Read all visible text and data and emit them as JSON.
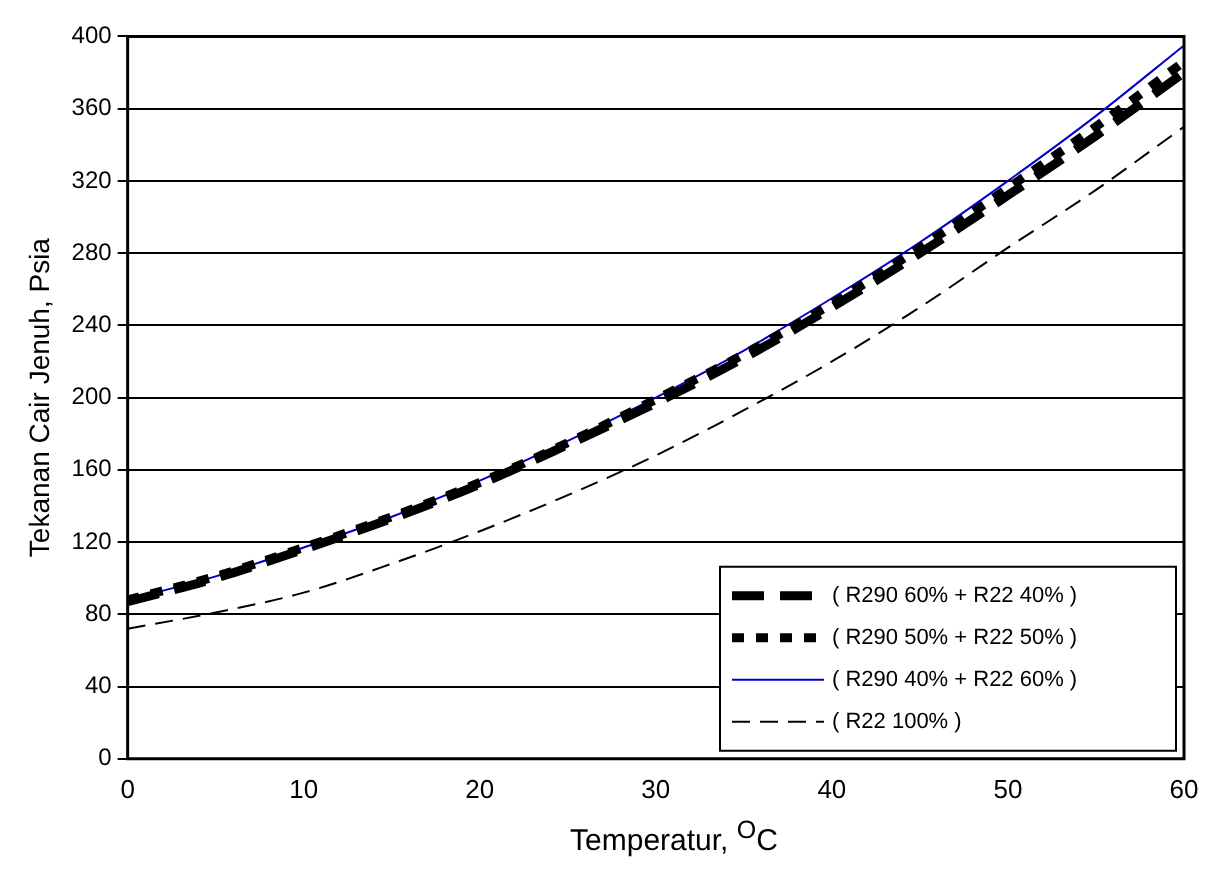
{
  "chart_data": {
    "type": "line",
    "xlabel": "Temperatur, $^{O}$C",
    "ylabel": "Tekanan Cair Jenuh, Psia",
    "x": [
      0,
      5,
      10,
      15,
      20,
      25,
      30,
      35,
      40,
      45,
      50,
      55,
      60
    ],
    "series": [
      {
        "name": "( R290 60% + R22 40% )",
        "color": "#000000",
        "line_style": "dashed",
        "values": [
          87,
          100,
          116,
          133,
          152,
          174,
          197,
          222,
          250,
          280,
          312,
          345,
          380
        ]
      },
      {
        "name": "( R290 50% + R22 50% )",
        "color": "#000000",
        "line_style": "dotted",
        "values": [
          88,
          101,
          117,
          134,
          153,
          175,
          199,
          224,
          252,
          283,
          316,
          350,
          386
        ]
      },
      {
        "name": "( R290 40% + R22 60% )",
        "color": "#0000cc",
        "line_style": "solid",
        "values": [
          88,
          101,
          117,
          134,
          154,
          176,
          200,
          226,
          255,
          286,
          320,
          356,
          395
        ]
      },
      {
        "name": "( R22 100% )",
        "color": "#000000",
        "line_style": "dashed",
        "values": [
          72,
          81,
          92,
          108,
          126,
          146,
          168,
          193,
          220,
          250,
          283,
          315,
          350
        ]
      }
    ],
    "xlim": [
      0,
      60
    ],
    "xticks": [
      0,
      10,
      20,
      30,
      40,
      50,
      60
    ],
    "ylim": [
      0,
      400
    ],
    "yticks": [
      0,
      40,
      80,
      120,
      160,
      200,
      240,
      280,
      320,
      360,
      400
    ],
    "grid": "y",
    "legend": "bottom right",
    "marker": "none"
  }
}
